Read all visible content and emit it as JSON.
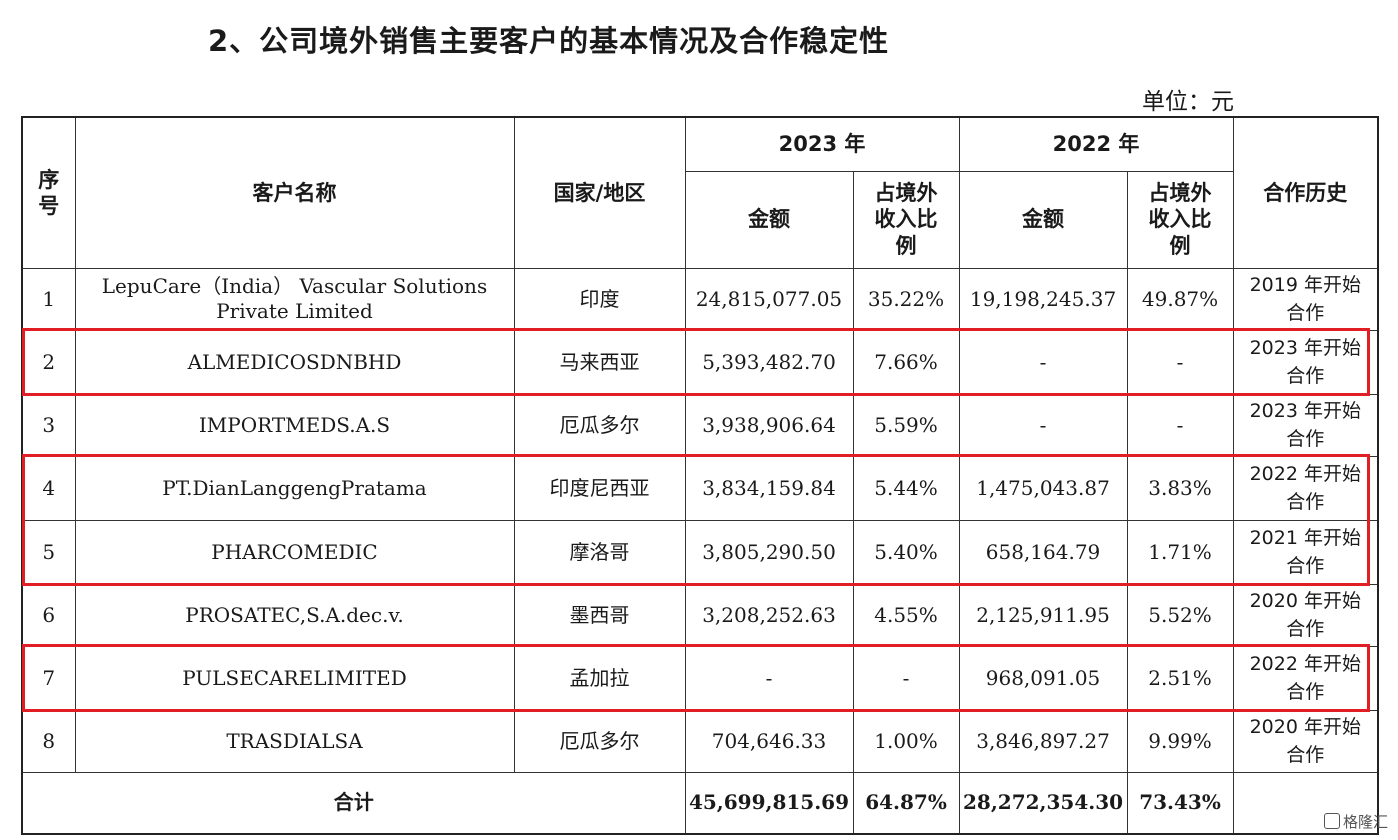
{
  "title": "2、公司境外销售主要客户的基本情况及合作稳定性",
  "unit": "单位：元",
  "headers": {
    "no": "序号",
    "name": "客户名称",
    "country": "国家/地区",
    "y2023": "2023 年",
    "y2022": "2022 年",
    "amount": "金额",
    "ratio": "占境外收入比例",
    "history": "合作历史"
  },
  "rows": [
    {
      "no": "1",
      "name": "LepuCare（India） Vascular Solutions Private Limited",
      "country": "印度",
      "amt2023": "24,815,077.05",
      "pct2023": "35.22%",
      "amt2022": "19,198,245.37",
      "pct2022": "49.87%",
      "history": "2019 年开始合作",
      "highlight": false
    },
    {
      "no": "2",
      "name": "ALMEDICOSDNBHD",
      "country": "马来西亚",
      "amt2023": "5,393,482.70",
      "pct2023": "7.66%",
      "amt2022": "-",
      "pct2022": "-",
      "history": "2023 年开始合作",
      "highlight": true
    },
    {
      "no": "3",
      "name": "IMPORTMEDS.A.S",
      "country": "厄瓜多尔",
      "amt2023": "3,938,906.64",
      "pct2023": "5.59%",
      "amt2022": "-",
      "pct2022": "-",
      "history": "2023 年开始合作",
      "highlight": false
    },
    {
      "no": "4",
      "name": "PT.DianLanggengPratama",
      "country": "印度尼西亚",
      "amt2023": "3,834,159.84",
      "pct2023": "5.44%",
      "amt2022": "1,475,043.87",
      "pct2022": "3.83%",
      "history": "2022 年开始合作",
      "highlight": true
    },
    {
      "no": "5",
      "name": "PHARCOMEDIC",
      "country": "摩洛哥",
      "amt2023": "3,805,290.50",
      "pct2023": "5.40%",
      "amt2022": "658,164.79",
      "pct2022": "1.71%",
      "history": "2021 年开始合作",
      "highlight": true
    },
    {
      "no": "6",
      "name": "PROSATEC,S.A.dec.v.",
      "country": "墨西哥",
      "amt2023": "3,208,252.63",
      "pct2023": "4.55%",
      "amt2022": "2,125,911.95",
      "pct2022": "5.52%",
      "history": "2020 年开始合作",
      "highlight": false
    },
    {
      "no": "7",
      "name": "PULSECARELIMITED",
      "country": "孟加拉",
      "amt2023": "-",
      "pct2023": "-",
      "amt2022": "968,091.05",
      "pct2022": "2.51%",
      "history": "2022 年开始合作",
      "highlight": true
    },
    {
      "no": "8",
      "name": "TRASDIALSA",
      "country": "厄瓜多尔",
      "amt2023": "704,646.33",
      "pct2023": "1.00%",
      "amt2022": "3,846,897.27",
      "pct2022": "9.99%",
      "history": "2020 年开始合作",
      "highlight": false
    }
  ],
  "total": {
    "label": "合计",
    "amt2023": "45,699,815.69",
    "pct2023": "64.87%",
    "amt2022": "28,272,354.30",
    "pct2022": "73.43%",
    "history": ""
  },
  "highlight_color": "#e01e23",
  "watermark": "格隆汇"
}
